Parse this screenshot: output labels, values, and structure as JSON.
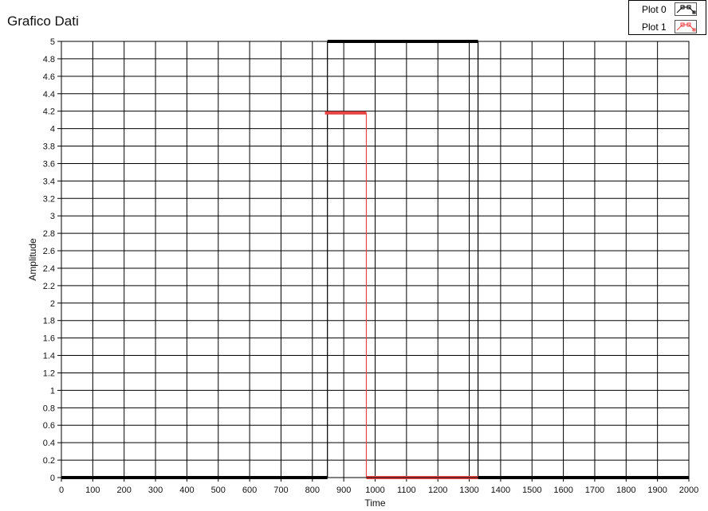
{
  "chart_data": {
    "type": "line",
    "title": "Grafico Dati",
    "xlabel": "Time",
    "ylabel": "Amplitude",
    "xlim": [
      0,
      2000
    ],
    "ylim": [
      0,
      5
    ],
    "grid": true,
    "legend_position": "top-right",
    "xticks": [
      "0",
      "100",
      "200",
      "300",
      "400",
      "500",
      "600",
      "700",
      "800",
      "900",
      "1000",
      "1100",
      "1200",
      "1300",
      "1400",
      "1500",
      "1600",
      "1700",
      "1800",
      "1900",
      "2000"
    ],
    "yticks": [
      "0",
      "0.2",
      "0.4",
      "0.6",
      "0.8",
      "1",
      "1.2",
      "1.4",
      "1.6",
      "1.8",
      "2",
      "2.2",
      "2.4",
      "2.6",
      "2.8",
      "3",
      "3.2",
      "3.4",
      "3.6",
      "3.8",
      "4",
      "4.2",
      "4.4",
      "4.6",
      "4.8",
      "5"
    ],
    "series": [
      {
        "name": "Plot 0",
        "color": "#000000",
        "x": [
          0,
          848,
          848,
          1328,
          1328,
          2000
        ],
        "y": [
          0,
          0,
          5,
          5,
          0,
          0
        ]
      },
      {
        "name": "Plot 1",
        "color": "#e84545",
        "x": [
          840,
          972,
          972,
          1328
        ],
        "y": [
          4.18,
          4.18,
          0,
          0
        ]
      }
    ]
  }
}
